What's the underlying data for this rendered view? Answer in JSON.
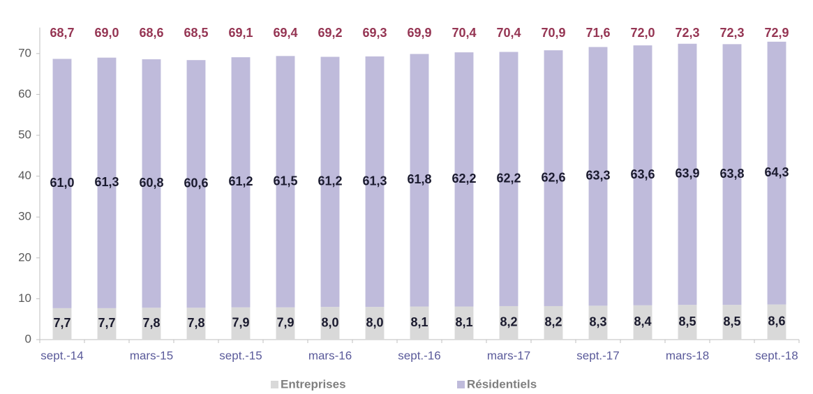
{
  "chart_data": {
    "type": "stacked_bar",
    "categories": [
      "sept.-14",
      null,
      "mars-15",
      null,
      "sept.-15",
      null,
      "mars-16",
      null,
      "sept.-16",
      null,
      "mars-17",
      null,
      "sept.-17",
      null,
      "mars-18",
      null,
      "sept.-18"
    ],
    "series": [
      {
        "name": "Entreprises",
        "color": "#d9d9d9",
        "values": [
          7.7,
          7.7,
          7.8,
          7.8,
          7.9,
          7.9,
          8.0,
          8.0,
          8.1,
          8.1,
          8.2,
          8.2,
          8.3,
          8.4,
          8.5,
          8.5,
          8.6
        ],
        "value_labels": [
          "7,7",
          "7,7",
          "7,8",
          "7,8",
          "7,9",
          "7,9",
          "8,0",
          "8,0",
          "8,1",
          "8,1",
          "8,2",
          "8,2",
          "8,3",
          "8,4",
          "8,5",
          "8,5",
          "8,6"
        ]
      },
      {
        "name": "Résidentiels",
        "color": "#bfbbdb",
        "values": [
          61.0,
          61.3,
          60.8,
          60.6,
          61.2,
          61.5,
          61.2,
          61.3,
          61.8,
          62.2,
          62.2,
          62.6,
          63.3,
          63.6,
          63.9,
          63.8,
          64.3
        ],
        "value_labels": [
          "61,0",
          "61,3",
          "60,8",
          "60,6",
          "61,2",
          "61,5",
          "61,2",
          "61,3",
          "61,8",
          "62,2",
          "62,2",
          "62,6",
          "63,3",
          "63,6",
          "63,9",
          "63,8",
          "64,3"
        ]
      }
    ],
    "totals": {
      "color": "#953553",
      "values": [
        68.7,
        69.0,
        68.6,
        68.5,
        69.1,
        69.4,
        69.2,
        69.3,
        69.9,
        70.4,
        70.4,
        70.9,
        71.6,
        72.0,
        72.3,
        72.3,
        72.9
      ],
      "value_labels": [
        "68,7",
        "69,0",
        "68,6",
        "68,5",
        "69,1",
        "69,4",
        "69,2",
        "69,3",
        "69,9",
        "70,4",
        "70,4",
        "70,9",
        "71,6",
        "72,0",
        "72,3",
        "72,3",
        "72,9"
      ]
    },
    "ylim": [
      0,
      75
    ],
    "yticks": [
      0,
      10,
      20,
      30,
      40,
      50,
      60,
      70
    ],
    "legend": "bottom"
  }
}
